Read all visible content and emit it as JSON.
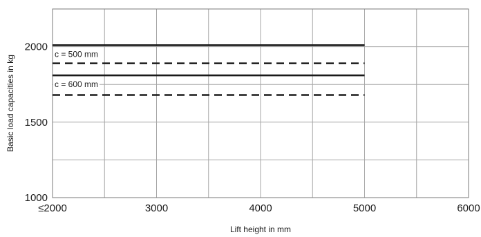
{
  "chart_data": {
    "type": "line",
    "title": "",
    "xlabel": "Lift height in mm",
    "ylabel": "Basic load capacities in kg",
    "xlim": [
      2000,
      6000
    ],
    "ylim": [
      1000,
      2250
    ],
    "x_tick_values": [
      2000,
      3000,
      4000,
      5000,
      6000
    ],
    "x_tick_labels": [
      "≤2000",
      "3000",
      "4000",
      "5000",
      "6000"
    ],
    "y_tick_values": [
      1000,
      1500,
      2000
    ],
    "y_tick_labels": [
      "1000",
      "1500",
      "2000"
    ],
    "x_grid": [
      2000,
      2500,
      3000,
      3500,
      4000,
      4500,
      5000,
      5500,
      6000
    ],
    "y_grid": [
      1000,
      1250,
      1500,
      1750,
      2000,
      2250
    ],
    "grid": true,
    "series": [
      {
        "style": "solid",
        "x": [
          2000,
          5000
        ],
        "y": [
          2010,
          2010
        ]
      },
      {
        "style": "dashed",
        "x": [
          2000,
          5000
        ],
        "y": [
          1890,
          1890
        ]
      },
      {
        "style": "solid",
        "x": [
          2000,
          5000
        ],
        "y": [
          1810,
          1810
        ]
      },
      {
        "style": "dashed",
        "x": [
          2000,
          5000
        ],
        "y": [
          1680,
          1680
        ]
      }
    ],
    "annotations": [
      {
        "text": "c = 500 mm",
        "x": 2000,
        "y": 1950
      },
      {
        "text": "c = 600 mm",
        "x": 2000,
        "y": 1750
      }
    ]
  }
}
